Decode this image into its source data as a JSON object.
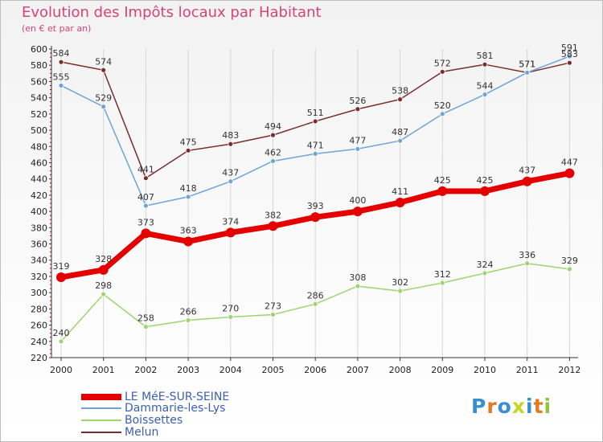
{
  "title": "Evolution des Impôts locaux par Habitant",
  "subtitle": "(en € et par an)",
  "logo_text": "Proxiti",
  "chart_data": {
    "type": "line",
    "title": "Evolution des Impôts locaux par Habitant",
    "subtitle": "(en € et par an)",
    "ylim": [
      220,
      600
    ],
    "ytick_step": 20,
    "grid": "vertical",
    "legend_position": "bottom-left",
    "x": [
      "2000",
      "2001",
      "2002",
      "2003",
      "2004",
      "2005",
      "2006",
      "2007",
      "2008",
      "2009",
      "2010",
      "2011",
      "2012"
    ],
    "series": [
      {
        "name": "LE MéE-SUR-SEINE",
        "color": "#e50000",
        "values": [
          319,
          328,
          373,
          363,
          374,
          382,
          393,
          400,
          411,
          425,
          425,
          437,
          447
        ]
      },
      {
        "name": "Dammarie-les-Lys",
        "color": "#6ea4d6",
        "values": [
          555,
          529,
          407,
          418,
          437,
          462,
          471,
          477,
          487,
          520,
          544,
          571,
          591
        ]
      },
      {
        "name": "Boissettes",
        "color": "#9ed46f",
        "values": [
          240,
          298,
          258,
          266,
          270,
          273,
          286,
          308,
          302,
          312,
          324,
          336,
          329
        ]
      },
      {
        "name": "Melun",
        "color": "#7a2d2d",
        "values": [
          584,
          574,
          441,
          475,
          483,
          494,
          511,
          526,
          538,
          572,
          581,
          571,
          583
        ]
      }
    ]
  }
}
